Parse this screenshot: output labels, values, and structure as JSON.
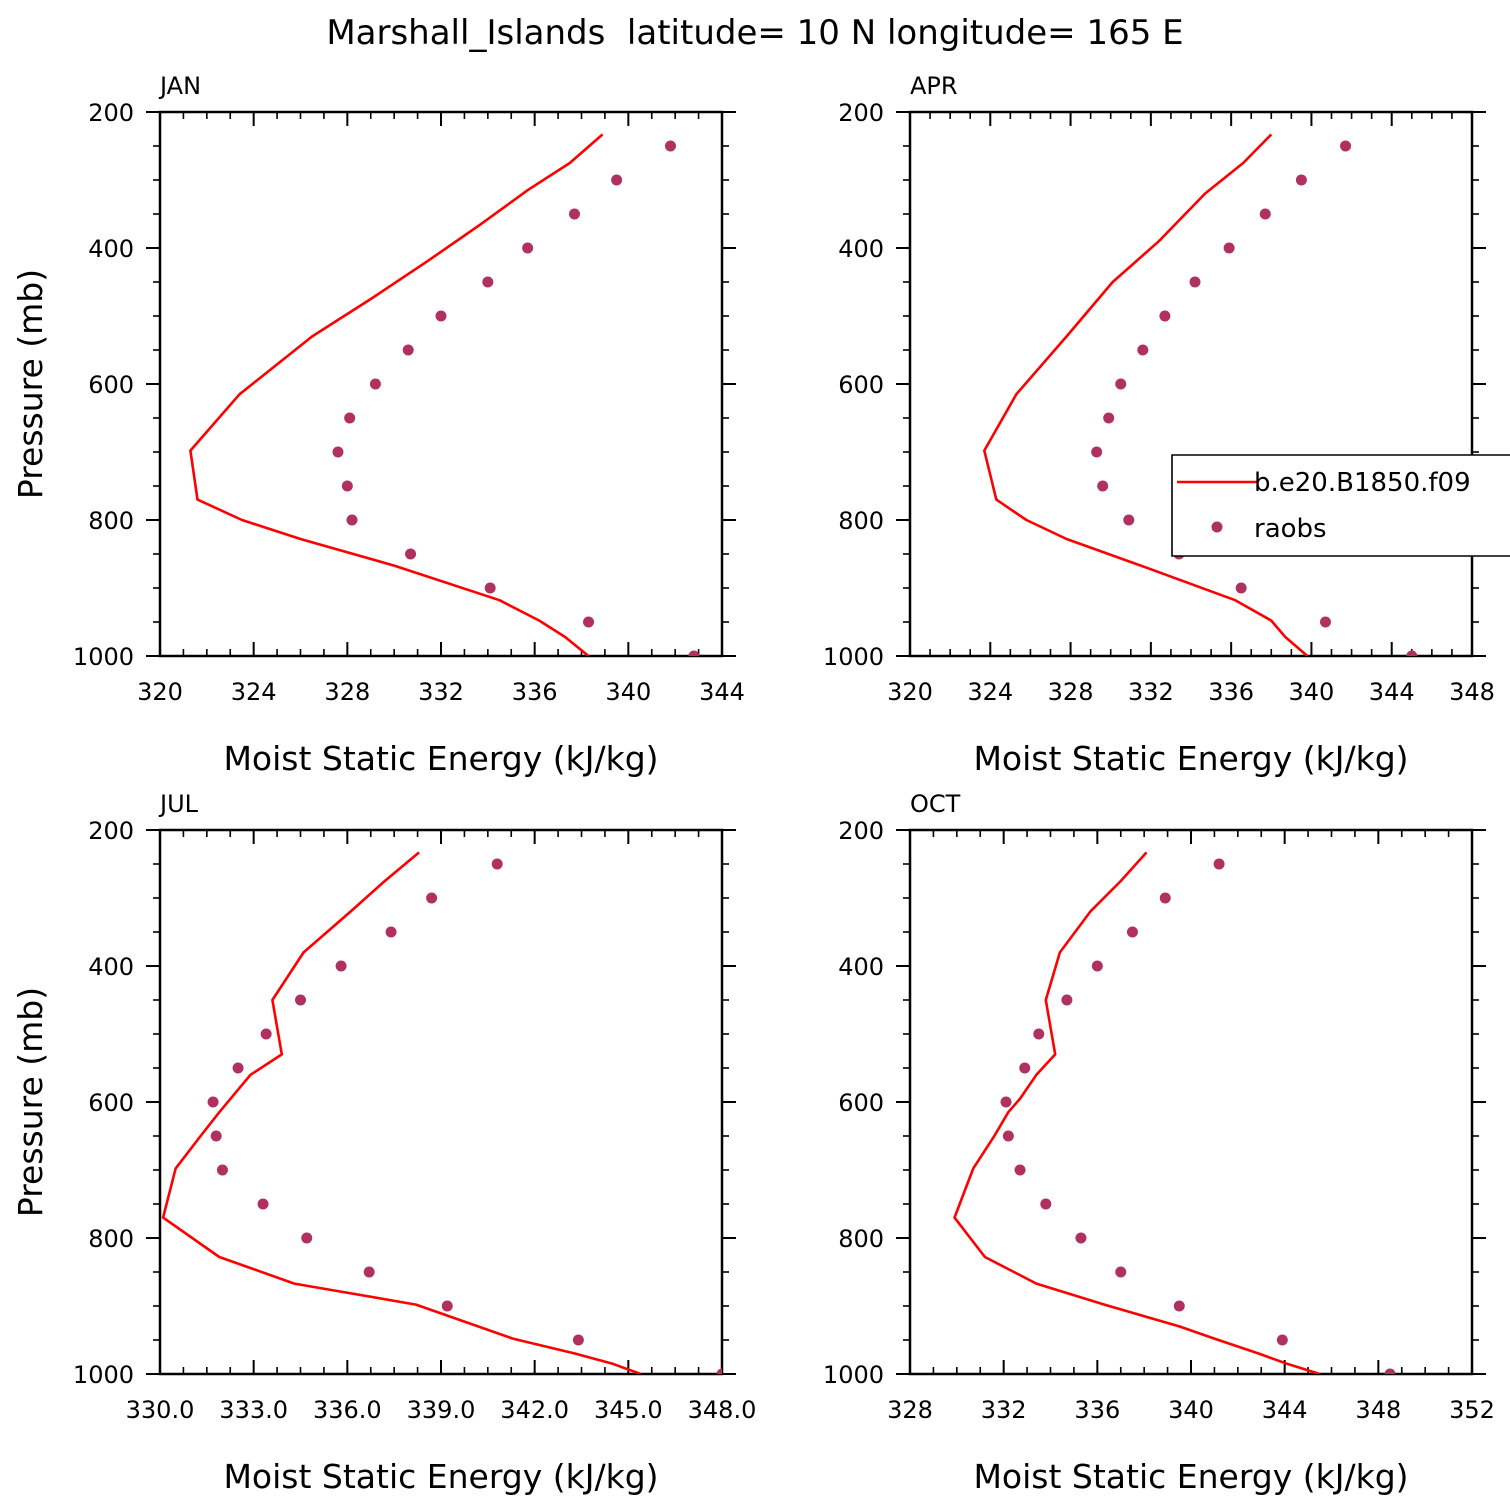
{
  "figure": {
    "title": "Marshall_Islands  latitude= 10 N longitude= 165 E"
  },
  "legend": {
    "location": "right side of APR panel",
    "entries": [
      {
        "label": "b.e20.B1850.f09",
        "type": "line",
        "color": "#ff0000"
      },
      {
        "label": "raobs",
        "type": "marker",
        "color": "#b03060"
      }
    ]
  },
  "chart_data": [
    {
      "type": "line",
      "panel": "JAN",
      "title": "JAN",
      "xlabel": "Moist Static Energy (kJ/kg)",
      "ylabel": "Pressure (mb)",
      "xlim": [
        320,
        344
      ],
      "ylim": [
        1000,
        200
      ],
      "xticks": [
        320,
        324,
        328,
        332,
        336,
        340,
        344
      ],
      "xtick_labels": [
        "320",
        "324",
        "328",
        "332",
        "336",
        "340",
        "344"
      ],
      "yticks": [
        200,
        400,
        600,
        800,
        1000
      ],
      "ytick_labels": [
        "200",
        "400",
        "600",
        "800",
        "1000"
      ],
      "series": [
        {
          "name": "b.e20.B1850.f09",
          "kind": "line",
          "color": "#ff0000",
          "x": [
            338.9,
            337.5,
            335.7,
            333.7,
            331.4,
            329.0,
            326.5,
            323.4,
            321.3,
            321.6,
            323.5,
            326.0,
            330.0,
            334.5,
            336.2,
            337.3,
            338.3
          ],
          "y": [
            233,
            275,
            315,
            365,
            420,
            475,
            530,
            615,
            698,
            770,
            800,
            828,
            867,
            918,
            948,
            972,
            1000
          ]
        },
        {
          "name": "raobs",
          "kind": "scatter",
          "color": "#b03060",
          "x": [
            341.8,
            339.5,
            337.7,
            335.7,
            334.0,
            332.0,
            330.6,
            329.2,
            328.1,
            327.6,
            328.0,
            328.2,
            330.7,
            334.1,
            338.3,
            342.8
          ],
          "y": [
            250,
            300,
            350,
            400,
            450,
            500,
            550,
            600,
            650,
            700,
            750,
            800,
            850,
            900,
            950,
            1000
          ]
        }
      ]
    },
    {
      "type": "line",
      "panel": "APR",
      "title": "APR",
      "xlabel": "Moist Static Energy (kJ/kg)",
      "ylabel": "",
      "xlim": [
        320,
        348
      ],
      "ylim": [
        1000,
        200
      ],
      "xticks": [
        320,
        324,
        328,
        332,
        336,
        340,
        344,
        348
      ],
      "xtick_labels": [
        "320",
        "324",
        "328",
        "332",
        "336",
        "340",
        "344",
        "348"
      ],
      "yticks": [
        200,
        400,
        600,
        800,
        1000
      ],
      "ytick_labels": [
        "200",
        "400",
        "600",
        "800",
        "1000"
      ],
      "series": [
        {
          "name": "b.e20.B1850.f09",
          "kind": "line",
          "color": "#ff0000",
          "x": [
            338.0,
            336.6,
            334.7,
            332.4,
            330.1,
            327.8,
            325.3,
            323.7,
            324.3,
            325.8,
            327.8,
            331.5,
            336.2,
            338.0,
            338.7,
            339.8
          ],
          "y": [
            233,
            275,
            320,
            390,
            450,
            530,
            615,
            698,
            770,
            800,
            828,
            867,
            918,
            948,
            972,
            1000
          ]
        },
        {
          "name": "raobs",
          "kind": "scatter",
          "color": "#b03060",
          "x": [
            341.7,
            339.5,
            337.7,
            335.9,
            334.2,
            332.7,
            331.6,
            330.5,
            329.9,
            329.3,
            329.6,
            330.9,
            333.4,
            336.5,
            340.7,
            345.0
          ],
          "y": [
            250,
            300,
            350,
            400,
            450,
            500,
            550,
            600,
            650,
            700,
            750,
            800,
            850,
            900,
            950,
            1000
          ]
        }
      ]
    },
    {
      "type": "line",
      "panel": "JUL",
      "title": "JUL",
      "xlabel": "Moist Static Energy (kJ/kg)",
      "ylabel": "Pressure (mb)",
      "xlim": [
        330,
        348
      ],
      "ylim": [
        1000,
        200
      ],
      "xticks": [
        330,
        333,
        336,
        339,
        342,
        345,
        348
      ],
      "xtick_labels": [
        "330.0",
        "333.0",
        "336.0",
        "339.0",
        "342.0",
        "345.0",
        "348.0"
      ],
      "yticks": [
        200,
        400,
        600,
        800,
        1000
      ],
      "ytick_labels": [
        "200",
        "400",
        "600",
        "800",
        "1000"
      ],
      "series": [
        {
          "name": "b.e20.B1850.f09",
          "kind": "line",
          "color": "#ff0000",
          "x": [
            338.3,
            337.2,
            336.1,
            334.6,
            333.6,
            333.9,
            332.9,
            331.9,
            331.3,
            330.5,
            330.1,
            331.9,
            334.3,
            338.2,
            341.3,
            343.3,
            344.5,
            345.4
          ],
          "y": [
            233,
            275,
            320,
            380,
            450,
            530,
            560,
            615,
            650,
            698,
            770,
            828,
            867,
            898,
            948,
            970,
            985,
            1000
          ]
        },
        {
          "name": "raobs",
          "kind": "scatter",
          "color": "#b03060",
          "x": [
            340.8,
            338.7,
            337.4,
            335.8,
            334.5,
            333.4,
            332.5,
            331.7,
            331.8,
            332.0,
            333.3,
            334.7,
            336.7,
            339.2,
            343.4,
            348.0
          ],
          "y": [
            250,
            300,
            350,
            400,
            450,
            500,
            550,
            600,
            650,
            700,
            750,
            800,
            850,
            900,
            950,
            1000
          ]
        }
      ]
    },
    {
      "type": "line",
      "panel": "OCT",
      "title": "OCT",
      "xlabel": "Moist Static Energy (kJ/kg)",
      "ylabel": "",
      "xlim": [
        328,
        352
      ],
      "ylim": [
        1000,
        200
      ],
      "xticks": [
        328,
        332,
        336,
        340,
        344,
        348,
        352
      ],
      "xtick_labels": [
        "328",
        "332",
        "336",
        "340",
        "344",
        "348",
        "352"
      ],
      "yticks": [
        200,
        400,
        600,
        800,
        1000
      ],
      "ytick_labels": [
        "200",
        "400",
        "600",
        "800",
        "1000"
      ],
      "series": [
        {
          "name": "b.e20.B1850.f09",
          "kind": "line",
          "color": "#ff0000",
          "x": [
            338.1,
            337.0,
            335.7,
            334.4,
            333.8,
            334.2,
            333.4,
            332.7,
            332.2,
            331.6,
            330.7,
            329.9,
            331.2,
            333.4,
            336.3,
            339.5,
            341.0,
            342.9,
            344.1,
            345.5
          ],
          "y": [
            233,
            275,
            320,
            380,
            450,
            530,
            560,
            595,
            615,
            650,
            698,
            770,
            828,
            867,
            898,
            930,
            948,
            970,
            985,
            1000
          ]
        },
        {
          "name": "raobs",
          "kind": "scatter",
          "color": "#b03060",
          "x": [
            341.2,
            338.9,
            337.5,
            336.0,
            334.7,
            333.5,
            332.9,
            332.1,
            332.2,
            332.7,
            333.8,
            335.3,
            337.0,
            339.5,
            343.9,
            348.5
          ],
          "y": [
            250,
            300,
            350,
            400,
            450,
            500,
            550,
            600,
            650,
            700,
            750,
            800,
            850,
            900,
            950,
            1000
          ]
        }
      ]
    }
  ]
}
